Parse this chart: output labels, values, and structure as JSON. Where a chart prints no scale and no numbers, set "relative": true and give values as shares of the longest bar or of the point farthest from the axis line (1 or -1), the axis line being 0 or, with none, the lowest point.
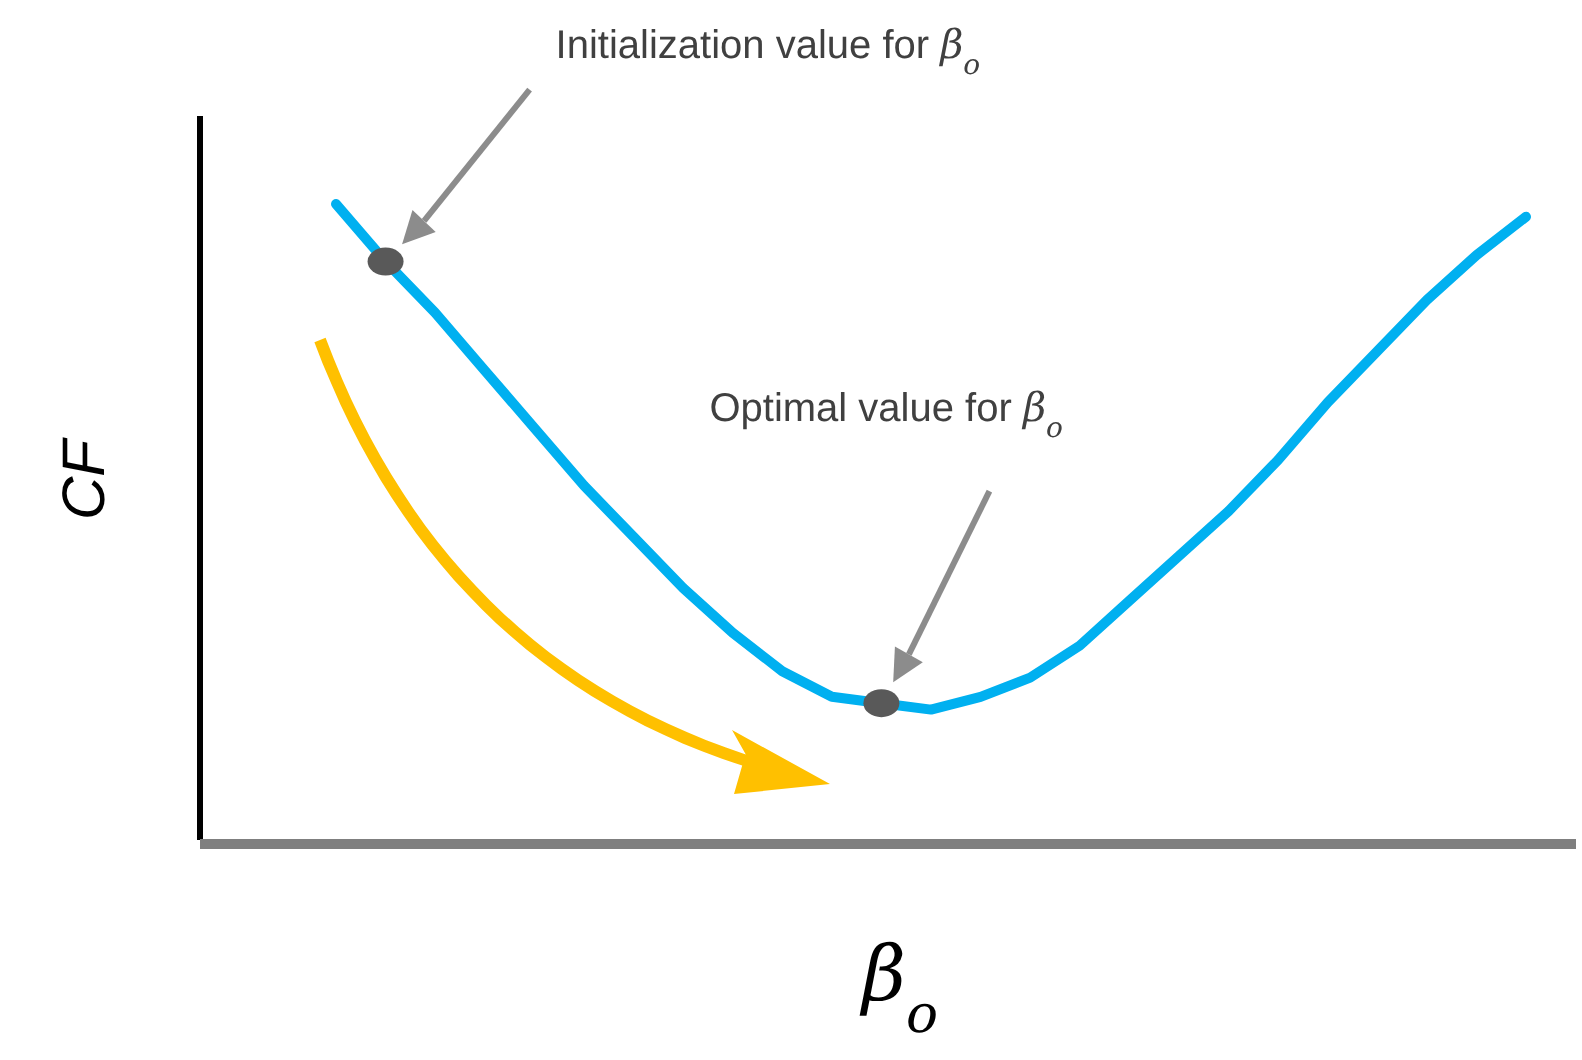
{
  "chart_data": {
    "type": "line",
    "relative": true,
    "xlabel": "β$_{o}$",
    "ylabel": "CF",
    "categories": [
      null,
      null,
      null,
      null,
      null,
      null,
      null,
      null,
      null,
      null,
      null,
      null,
      null,
      null,
      null,
      null,
      null,
      null,
      null,
      null,
      null,
      null,
      null,
      null,
      null
    ],
    "series": [
      {
        "type": "line",
        "color": "#00b0f0",
        "values": [
          1.0,
          0.91,
          0.83,
          0.74,
          0.65,
          0.56,
          0.48,
          0.4,
          0.33,
          0.27,
          0.23,
          0.22,
          0.21,
          0.23,
          0.26,
          0.31,
          0.38,
          0.45,
          0.52,
          0.6,
          0.69,
          0.77,
          0.85,
          0.92,
          0.98
        ]
      }
    ],
    "annotations": [
      "Initialization value for β$_{o}$",
      "Optimal value for β$_{o}$"
    ]
  }
}
